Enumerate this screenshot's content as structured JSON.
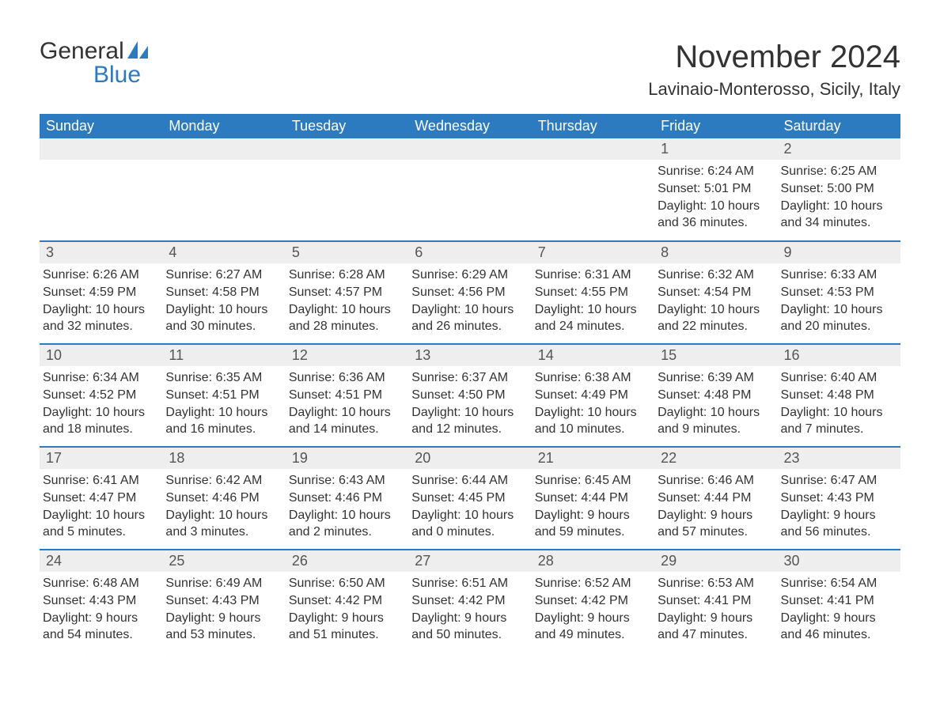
{
  "brand": {
    "general": "General",
    "blue": "Blue"
  },
  "title": "November 2024",
  "location": "Lavinaio-Monterosso, Sicily, Italy",
  "colors": {
    "primary": "#2c7ac0",
    "header_text": "#ffffff",
    "daybar_bg": "#eeeeee",
    "daybar_text": "#555555",
    "body_text": "#333333",
    "page_bg": "#ffffff"
  },
  "layout": {
    "columns": 7,
    "rows": 5,
    "first_day_column_index": 5
  },
  "typography": {
    "title_fontsize": 40,
    "location_fontsize": 22,
    "header_fontsize": 18,
    "daynum_fontsize": 18,
    "body_fontsize": 16
  },
  "weekdays": [
    "Sunday",
    "Monday",
    "Tuesday",
    "Wednesday",
    "Thursday",
    "Friday",
    "Saturday"
  ],
  "days": [
    {
      "n": 1,
      "sunrise": "6:24 AM",
      "sunset": "5:01 PM",
      "daylight": "10 hours and 36 minutes."
    },
    {
      "n": 2,
      "sunrise": "6:25 AM",
      "sunset": "5:00 PM",
      "daylight": "10 hours and 34 minutes."
    },
    {
      "n": 3,
      "sunrise": "6:26 AM",
      "sunset": "4:59 PM",
      "daylight": "10 hours and 32 minutes."
    },
    {
      "n": 4,
      "sunrise": "6:27 AM",
      "sunset": "4:58 PM",
      "daylight": "10 hours and 30 minutes."
    },
    {
      "n": 5,
      "sunrise": "6:28 AM",
      "sunset": "4:57 PM",
      "daylight": "10 hours and 28 minutes."
    },
    {
      "n": 6,
      "sunrise": "6:29 AM",
      "sunset": "4:56 PM",
      "daylight": "10 hours and 26 minutes."
    },
    {
      "n": 7,
      "sunrise": "6:31 AM",
      "sunset": "4:55 PM",
      "daylight": "10 hours and 24 minutes."
    },
    {
      "n": 8,
      "sunrise": "6:32 AM",
      "sunset": "4:54 PM",
      "daylight": "10 hours and 22 minutes."
    },
    {
      "n": 9,
      "sunrise": "6:33 AM",
      "sunset": "4:53 PM",
      "daylight": "10 hours and 20 minutes."
    },
    {
      "n": 10,
      "sunrise": "6:34 AM",
      "sunset": "4:52 PM",
      "daylight": "10 hours and 18 minutes."
    },
    {
      "n": 11,
      "sunrise": "6:35 AM",
      "sunset": "4:51 PM",
      "daylight": "10 hours and 16 minutes."
    },
    {
      "n": 12,
      "sunrise": "6:36 AM",
      "sunset": "4:51 PM",
      "daylight": "10 hours and 14 minutes."
    },
    {
      "n": 13,
      "sunrise": "6:37 AM",
      "sunset": "4:50 PM",
      "daylight": "10 hours and 12 minutes."
    },
    {
      "n": 14,
      "sunrise": "6:38 AM",
      "sunset": "4:49 PM",
      "daylight": "10 hours and 10 minutes."
    },
    {
      "n": 15,
      "sunrise": "6:39 AM",
      "sunset": "4:48 PM",
      "daylight": "10 hours and 9 minutes."
    },
    {
      "n": 16,
      "sunrise": "6:40 AM",
      "sunset": "4:48 PM",
      "daylight": "10 hours and 7 minutes."
    },
    {
      "n": 17,
      "sunrise": "6:41 AM",
      "sunset": "4:47 PM",
      "daylight": "10 hours and 5 minutes."
    },
    {
      "n": 18,
      "sunrise": "6:42 AM",
      "sunset": "4:46 PM",
      "daylight": "10 hours and 3 minutes."
    },
    {
      "n": 19,
      "sunrise": "6:43 AM",
      "sunset": "4:46 PM",
      "daylight": "10 hours and 2 minutes."
    },
    {
      "n": 20,
      "sunrise": "6:44 AM",
      "sunset": "4:45 PM",
      "daylight": "10 hours and 0 minutes."
    },
    {
      "n": 21,
      "sunrise": "6:45 AM",
      "sunset": "4:44 PM",
      "daylight": "9 hours and 59 minutes."
    },
    {
      "n": 22,
      "sunrise": "6:46 AM",
      "sunset": "4:44 PM",
      "daylight": "9 hours and 57 minutes."
    },
    {
      "n": 23,
      "sunrise": "6:47 AM",
      "sunset": "4:43 PM",
      "daylight": "9 hours and 56 minutes."
    },
    {
      "n": 24,
      "sunrise": "6:48 AM",
      "sunset": "4:43 PM",
      "daylight": "9 hours and 54 minutes."
    },
    {
      "n": 25,
      "sunrise": "6:49 AM",
      "sunset": "4:43 PM",
      "daylight": "9 hours and 53 minutes."
    },
    {
      "n": 26,
      "sunrise": "6:50 AM",
      "sunset": "4:42 PM",
      "daylight": "9 hours and 51 minutes."
    },
    {
      "n": 27,
      "sunrise": "6:51 AM",
      "sunset": "4:42 PM",
      "daylight": "9 hours and 50 minutes."
    },
    {
      "n": 28,
      "sunrise": "6:52 AM",
      "sunset": "4:42 PM",
      "daylight": "9 hours and 49 minutes."
    },
    {
      "n": 29,
      "sunrise": "6:53 AM",
      "sunset": "4:41 PM",
      "daylight": "9 hours and 47 minutes."
    },
    {
      "n": 30,
      "sunrise": "6:54 AM",
      "sunset": "4:41 PM",
      "daylight": "9 hours and 46 minutes."
    }
  ],
  "labels": {
    "sunrise": "Sunrise",
    "sunset": "Sunset",
    "daylight": "Daylight"
  }
}
